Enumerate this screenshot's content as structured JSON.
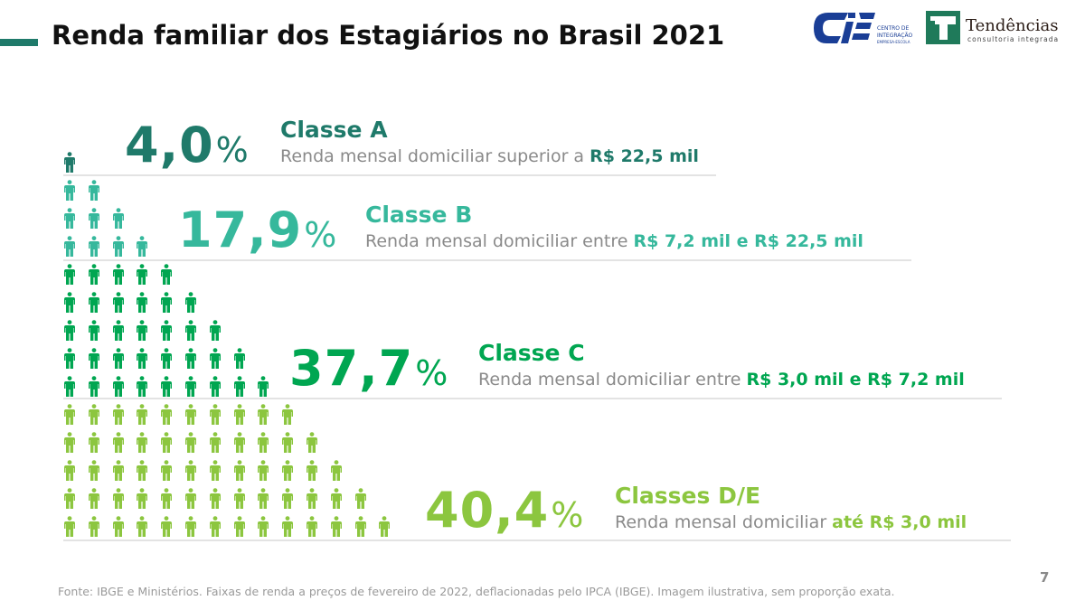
{
  "title": "Renda familiar dos Estagiários no Brasil 2021",
  "logos": {
    "cie": "CIEE Centro de Integração Empresa-Escola",
    "tendencias_name": "Tendências",
    "tendencias_sub": "consultoria integrada"
  },
  "classes": [
    {
      "id": "a",
      "percent": "4,0",
      "symbol": "%",
      "name": "Classe A",
      "desc_prefix": "Renda mensal domiciliar superior a ",
      "desc_value": "R$ 22,5 mil",
      "color": "#1f7a6a",
      "icon_rows": [
        1
      ]
    },
    {
      "id": "b",
      "percent": "17,9",
      "symbol": "%",
      "name": "Classe B",
      "desc_prefix": "Renda mensal domiciliar entre ",
      "desc_value": "R$ 7,2 mil e R$ 22,5 mil",
      "color": "#36b89c",
      "icon_rows": [
        2,
        3,
        4
      ]
    },
    {
      "id": "c",
      "percent": "37,7",
      "symbol": "%",
      "name": "Classe C",
      "desc_prefix": "Renda mensal domiciliar entre ",
      "desc_value": "R$ 3,0 mil e R$ 7,2 mil",
      "color": "#00a651",
      "icon_rows": [
        5,
        6,
        7,
        8,
        9
      ]
    },
    {
      "id": "de",
      "percent": "40,4",
      "symbol": "%",
      "name": "Classes D/E",
      "desc_prefix": "Renda mensal domiciliar ",
      "desc_value": "até R$ 3,0 mil",
      "color": "#8cc63f",
      "icon_rows": [
        10,
        11,
        12,
        13,
        14
      ]
    }
  ],
  "footer": "Fonte: IBGE e Ministérios. Faixas de renda a preços de fevereiro de 2022, deflacionadas pelo IPCA (IBGE). Imagem ilustrativa, sem proporção exata.",
  "page_number": "7"
}
